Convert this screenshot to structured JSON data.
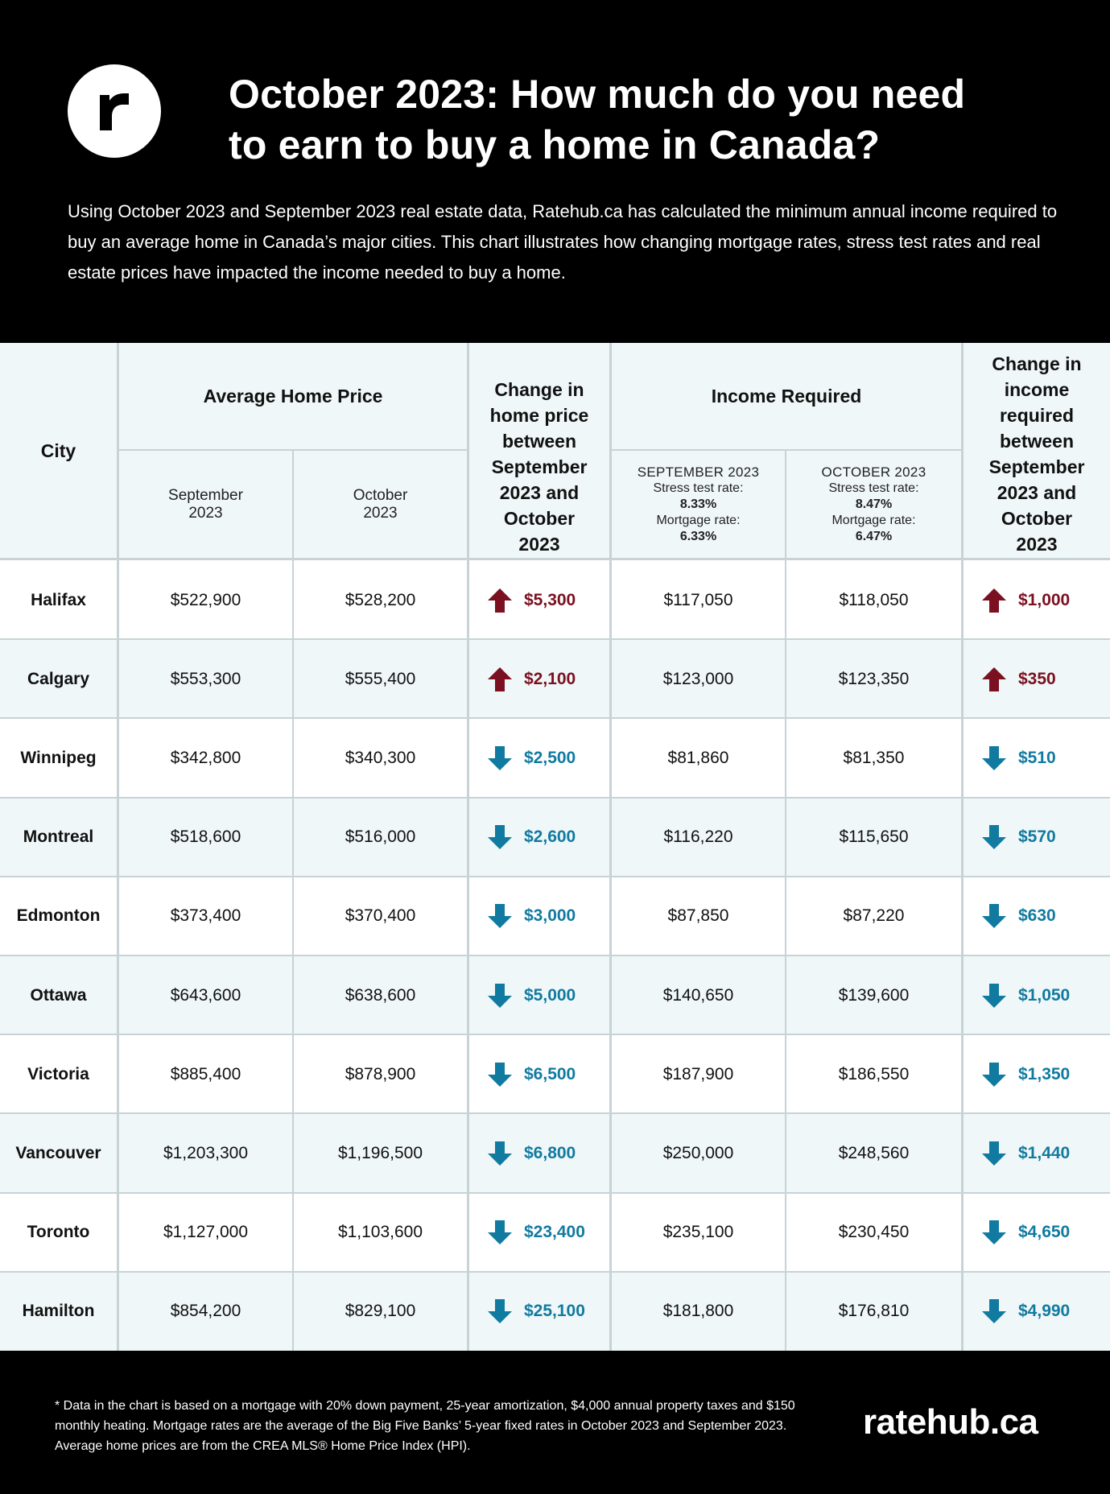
{
  "header": {
    "logo_letter": "r",
    "title_line1": "October 2023: How much do you need",
    "title_line2": "to earn to buy a home in Canada?",
    "intro": "Using October 2023 and September 2023 real estate data, Ratehub.ca has calculated the minimum annual income required to buy an average home in Canada’s major cities. This chart illustrates how changing mortgage rates, stress test rates and real estate prices have impacted the income needed to buy a home."
  },
  "colors": {
    "up": "#7a1020",
    "down": "#117aa0",
    "grid": "#c7d3d7",
    "alt_row": "#f0f7f8"
  },
  "table_head": {
    "city": "City",
    "avg_price": "Average Home Price",
    "sep_line1": "September",
    "sep_line2": "2023",
    "oct_line1": "October",
    "oct_line2": "2023",
    "price_change_lines": [
      "Change in",
      "home price",
      "between",
      "September",
      "2023 and",
      "October",
      "2023"
    ],
    "income_required": "Income Required",
    "sep_rates": {
      "label": "SEPTEMBER 2023",
      "stress_label": "Stress test rate:",
      "stress": "8.33%",
      "mortgage_label": "Mortgage rate:",
      "mortgage": "6.33%"
    },
    "oct_rates": {
      "label": "OCTOBER 2023",
      "stress_label": "Stress test rate:",
      "stress": "8.47%",
      "mortgage_label": "Mortgage rate:",
      "mortgage": "6.47%"
    },
    "income_change_lines": [
      "Change in",
      "income",
      "required",
      "between",
      "September",
      "2023 and",
      "October",
      "2023"
    ]
  },
  "chart_data": {
    "type": "table",
    "title": "October 2023: How much do you need to earn to buy a home in Canada?",
    "columns": [
      "City",
      "Average Home Price September 2023",
      "Average Home Price October 2023",
      "Change in home price",
      "Income Required September 2023",
      "Income Required October 2023",
      "Change in income required"
    ],
    "rows": [
      {
        "city": "Halifax",
        "price_sep": "$522,900",
        "price_oct": "$528,200",
        "price_dir": "up",
        "price_change": "$5,300",
        "inc_sep": "$117,050",
        "inc_oct": "$118,050",
        "inc_dir": "up",
        "inc_change": "$1,000"
      },
      {
        "city": "Calgary",
        "price_sep": "$553,300",
        "price_oct": "$555,400",
        "price_dir": "up",
        "price_change": "$2,100",
        "inc_sep": "$123,000",
        "inc_oct": "$123,350",
        "inc_dir": "up",
        "inc_change": "$350"
      },
      {
        "city": "Winnipeg",
        "price_sep": "$342,800",
        "price_oct": "$340,300",
        "price_dir": "down",
        "price_change": "$2,500",
        "inc_sep": "$81,860",
        "inc_oct": "$81,350",
        "inc_dir": "down",
        "inc_change": "$510"
      },
      {
        "city": "Montreal",
        "price_sep": "$518,600",
        "price_oct": "$516,000",
        "price_dir": "down",
        "price_change": "$2,600",
        "inc_sep": "$116,220",
        "inc_oct": "$115,650",
        "inc_dir": "down",
        "inc_change": "$570"
      },
      {
        "city": "Edmonton",
        "price_sep": "$373,400",
        "price_oct": "$370,400",
        "price_dir": "down",
        "price_change": "$3,000",
        "inc_sep": "$87,850",
        "inc_oct": "$87,220",
        "inc_dir": "down",
        "inc_change": "$630"
      },
      {
        "city": "Ottawa",
        "price_sep": "$643,600",
        "price_oct": "$638,600",
        "price_dir": "down",
        "price_change": "$5,000",
        "inc_sep": "$140,650",
        "inc_oct": "$139,600",
        "inc_dir": "down",
        "inc_change": "$1,050"
      },
      {
        "city": "Victoria",
        "price_sep": "$885,400",
        "price_oct": "$878,900",
        "price_dir": "down",
        "price_change": "$6,500",
        "inc_sep": "$187,900",
        "inc_oct": "$186,550",
        "inc_dir": "down",
        "inc_change": "$1,350"
      },
      {
        "city": "Vancouver",
        "price_sep": "$1,203,300",
        "price_oct": "$1,196,500",
        "price_dir": "down",
        "price_change": "$6,800",
        "inc_sep": "$250,000",
        "inc_oct": "$248,560",
        "inc_dir": "down",
        "inc_change": "$1,440"
      },
      {
        "city": "Toronto",
        "price_sep": "$1,127,000",
        "price_oct": "$1,103,600",
        "price_dir": "down",
        "price_change": "$23,400",
        "inc_sep": "$235,100",
        "inc_oct": "$230,450",
        "inc_dir": "down",
        "inc_change": "$4,650"
      },
      {
        "city": "Hamilton",
        "price_sep": "$854,200",
        "price_oct": "$829,100",
        "price_dir": "down",
        "price_change": "$25,100",
        "inc_sep": "$181,800",
        "inc_oct": "$176,810",
        "inc_dir": "down",
        "inc_change": "$4,990"
      }
    ]
  },
  "footer": {
    "note": "* Data in the chart is based on a mortgage with 20% down payment, 25-year amortization, $4,000 annual property taxes and $150 monthly heating. Mortgage rates are the average of the Big Five Banks’ 5-year fixed rates in October 2023 and September 2023.  Average home prices are from the CREA MLS® Home Price Index (HPI).",
    "brand": "ratehub.ca"
  }
}
